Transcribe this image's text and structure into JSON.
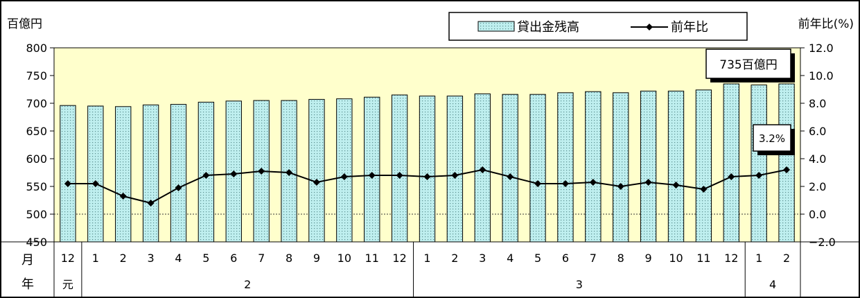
{
  "chart_data": {
    "type": "bar",
    "left_axis_unit": "百億円",
    "right_axis_unit": "前年比(%)",
    "row_label_month": "月",
    "row_label_year": "年",
    "legend": {
      "bar": "貸出金残高",
      "line": "前年比"
    },
    "annotations": {
      "bar_last": "735百億円",
      "line_last": "3.2%"
    },
    "y_left": {
      "min": 450,
      "max": 800,
      "ticks": [
        "800",
        "750",
        "700",
        "650",
        "600",
        "550",
        "500",
        "450"
      ]
    },
    "y_right": {
      "min": -2.0,
      "max": 12.0,
      "ticks": [
        "12.0",
        "10.0",
        "8.0",
        "6.0",
        "4.0",
        "2.0",
        "0.0",
        "−2.0"
      ]
    },
    "months": [
      "12",
      "1",
      "2",
      "3",
      "4",
      "5",
      "6",
      "7",
      "8",
      "9",
      "10",
      "11",
      "12",
      "1",
      "2",
      "3",
      "4",
      "5",
      "6",
      "7",
      "8",
      "9",
      "10",
      "11",
      "12",
      "1",
      "2"
    ],
    "years": [
      {
        "label": "元",
        "count": 1
      },
      {
        "label": "2",
        "count": 12
      },
      {
        "label": "3",
        "count": 12
      },
      {
        "label": "4",
        "count": 2
      }
    ],
    "series": [
      {
        "name": "貸出金残高",
        "axis": "left",
        "values": [
          696,
          695,
          694,
          697,
          698,
          702,
          704,
          705,
          705,
          707,
          708,
          711,
          715,
          713,
          713,
          717,
          716,
          716,
          719,
          721,
          719,
          722,
          722,
          724,
          735,
          733,
          735
        ]
      },
      {
        "name": "前年比",
        "axis": "right",
        "values": [
          2.2,
          2.2,
          1.3,
          0.8,
          1.9,
          2.8,
          2.9,
          3.1,
          3.0,
          2.3,
          2.7,
          2.8,
          2.8,
          2.7,
          2.8,
          3.2,
          2.7,
          2.2,
          2.2,
          2.3,
          2.0,
          2.3,
          2.1,
          1.8,
          2.7,
          2.8,
          3.2
        ]
      }
    ],
    "colors": {
      "plot_bg": "#ffffcc",
      "bar_fill": "#bfefef",
      "bar_stroke": "#000000",
      "line": "#000000"
    }
  }
}
